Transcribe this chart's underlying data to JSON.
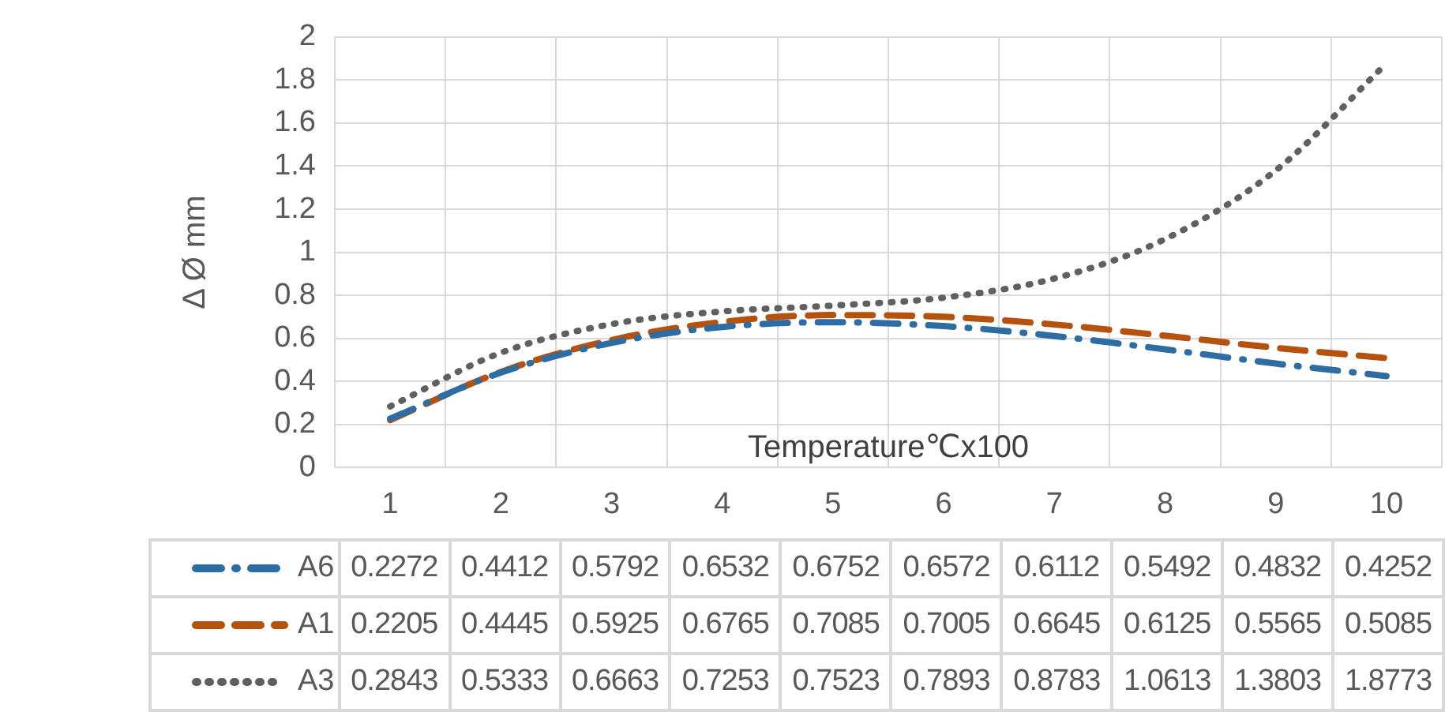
{
  "chart_data": {
    "type": "line",
    "xlabel": "Temperature℃x100",
    "ylabel": "Δ Ø mm",
    "categories": [
      "1",
      "2",
      "3",
      "4",
      "5",
      "6",
      "7",
      "8",
      "9",
      "10"
    ],
    "series": [
      {
        "name": "A6",
        "color": "#2e6ca4",
        "line_style": "dashdot",
        "values": [
          0.2272,
          0.4412,
          0.5792,
          0.6532,
          0.6752,
          0.6572,
          0.6112,
          0.5492,
          0.4832,
          0.4252
        ]
      },
      {
        "name": "A1",
        "color": "#b5520f",
        "line_style": "dashed",
        "values": [
          0.2205,
          0.4445,
          0.5925,
          0.6765,
          0.7085,
          0.7005,
          0.6645,
          0.6125,
          0.5565,
          0.5085
        ]
      },
      {
        "name": "A3",
        "color": "#606060",
        "line_style": "dotted",
        "values": [
          0.2843,
          0.5333,
          0.6663,
          0.7253,
          0.7523,
          0.7893,
          0.8783,
          1.0613,
          1.3803,
          1.8773
        ]
      }
    ],
    "ylim": [
      0,
      2
    ],
    "yticks": [
      0,
      0.2,
      0.4,
      0.6,
      0.8,
      1,
      1.2,
      1.4,
      1.6,
      1.8,
      2
    ],
    "grid": true,
    "legend": "bottom",
    "marker": "none",
    "data_labels": true
  }
}
